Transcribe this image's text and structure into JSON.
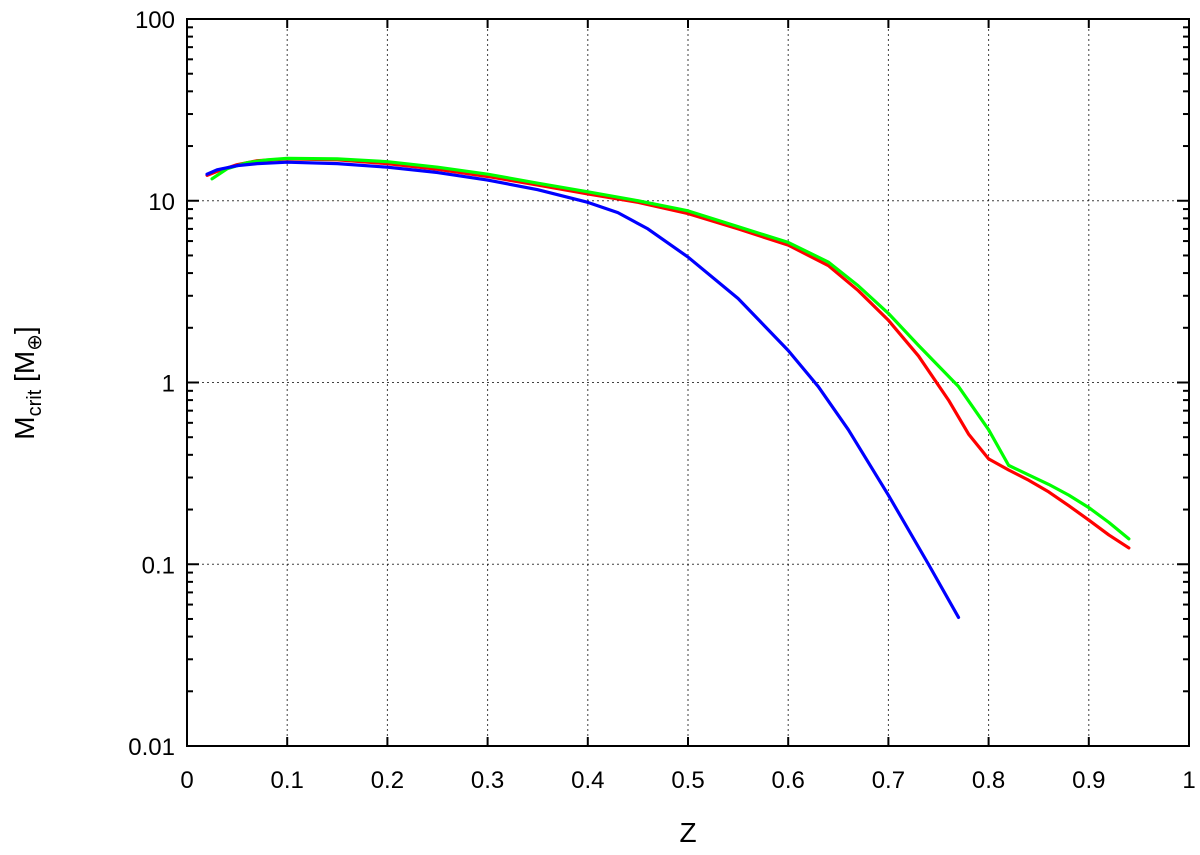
{
  "chart_data": {
    "type": "line",
    "xlabel": "Z",
    "ylabel_main": "M",
    "ylabel_sub": "crit",
    "ylabel_unit_open": " [M",
    "ylabel_unit_sub": "⊕",
    "ylabel_unit_close": "]",
    "xlim": [
      0,
      1
    ],
    "ylim": [
      0.01,
      100
    ],
    "yscale": "log",
    "grid": true,
    "legend": "none",
    "x_ticks": [
      0,
      0.1,
      0.2,
      0.3,
      0.4,
      0.5,
      0.6,
      0.7,
      0.8,
      0.9,
      1
    ],
    "x_tick_labels": [
      "0",
      "0.1",
      "0.2",
      "0.3",
      "0.4",
      "0.5",
      "0.6",
      "0.7",
      "0.8",
      "0.9",
      "1"
    ],
    "y_ticks": [
      0.01,
      0.1,
      1,
      10,
      100
    ],
    "y_tick_labels": [
      "0.01",
      "0.1",
      "1",
      "10",
      "100"
    ],
    "series": [
      {
        "color": "#ff0000",
        "points": [
          [
            0.02,
            13.8
          ],
          [
            0.03,
            14.5
          ],
          [
            0.05,
            15.8
          ],
          [
            0.07,
            16.6
          ],
          [
            0.1,
            17.0
          ],
          [
            0.15,
            16.8
          ],
          [
            0.2,
            16.0
          ],
          [
            0.25,
            14.9
          ],
          [
            0.3,
            13.6
          ],
          [
            0.35,
            12.2
          ],
          [
            0.4,
            10.9
          ],
          [
            0.45,
            9.8
          ],
          [
            0.5,
            8.5
          ],
          [
            0.55,
            7.0
          ],
          [
            0.6,
            5.7
          ],
          [
            0.64,
            4.4
          ],
          [
            0.67,
            3.2
          ],
          [
            0.7,
            2.2
          ],
          [
            0.73,
            1.4
          ],
          [
            0.76,
            0.8
          ],
          [
            0.78,
            0.52
          ],
          [
            0.8,
            0.38
          ],
          [
            0.82,
            0.33
          ],
          [
            0.84,
            0.29
          ],
          [
            0.86,
            0.25
          ],
          [
            0.88,
            0.21
          ],
          [
            0.9,
            0.175
          ],
          [
            0.92,
            0.145
          ],
          [
            0.94,
            0.123
          ]
        ]
      },
      {
        "color": "#00ff00",
        "points": [
          [
            0.025,
            13.2
          ],
          [
            0.04,
            15.0
          ],
          [
            0.06,
            16.2
          ],
          [
            0.08,
            16.8
          ],
          [
            0.1,
            17.1
          ],
          [
            0.15,
            17.0
          ],
          [
            0.2,
            16.4
          ],
          [
            0.25,
            15.3
          ],
          [
            0.3,
            14.0
          ],
          [
            0.35,
            12.5
          ],
          [
            0.4,
            11.2
          ],
          [
            0.45,
            10.0
          ],
          [
            0.5,
            8.8
          ],
          [
            0.55,
            7.2
          ],
          [
            0.6,
            5.9
          ],
          [
            0.64,
            4.6
          ],
          [
            0.67,
            3.4
          ],
          [
            0.7,
            2.4
          ],
          [
            0.73,
            1.6
          ],
          [
            0.77,
            0.95
          ],
          [
            0.8,
            0.55
          ],
          [
            0.82,
            0.35
          ],
          [
            0.84,
            0.31
          ],
          [
            0.86,
            0.275
          ],
          [
            0.88,
            0.24
          ],
          [
            0.9,
            0.205
          ],
          [
            0.92,
            0.17
          ],
          [
            0.94,
            0.138
          ]
        ]
      },
      {
        "color": "#0000ff",
        "points": [
          [
            0.02,
            14.0
          ],
          [
            0.03,
            14.8
          ],
          [
            0.05,
            15.6
          ],
          [
            0.07,
            16.0
          ],
          [
            0.1,
            16.3
          ],
          [
            0.15,
            16.0
          ],
          [
            0.2,
            15.3
          ],
          [
            0.25,
            14.3
          ],
          [
            0.3,
            13.0
          ],
          [
            0.35,
            11.5
          ],
          [
            0.4,
            9.8
          ],
          [
            0.43,
            8.6
          ],
          [
            0.46,
            7.0
          ],
          [
            0.5,
            4.9
          ],
          [
            0.55,
            2.9
          ],
          [
            0.6,
            1.5
          ],
          [
            0.63,
            0.95
          ],
          [
            0.66,
            0.55
          ],
          [
            0.7,
            0.24
          ],
          [
            0.74,
            0.1
          ],
          [
            0.77,
            0.051
          ]
        ]
      }
    ]
  }
}
